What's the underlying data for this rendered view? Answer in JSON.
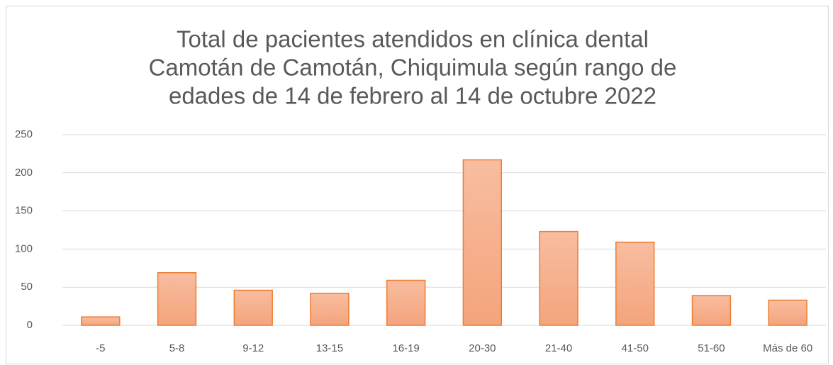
{
  "chart_data": {
    "type": "bar",
    "title": [
      "Total de pacientes atendidos en clínica dental",
      "Camotán de Camotán, Chiquimula según rango de",
      "edades de 14 de febrero al 14 de octubre 2022"
    ],
    "categories": [
      "-5",
      "5-8",
      "9-12",
      "13-15",
      "16-19",
      "20-30",
      "21-40",
      "41-50",
      "51-60",
      "Más de 60"
    ],
    "values": [
      11,
      69,
      46,
      42,
      59,
      217,
      123,
      109,
      39,
      33
    ],
    "color": "#ed7d31",
    "ylim": [
      0,
      250
    ],
    "yticks": [
      0,
      50,
      100,
      150,
      200,
      250
    ],
    "grid": true
  }
}
